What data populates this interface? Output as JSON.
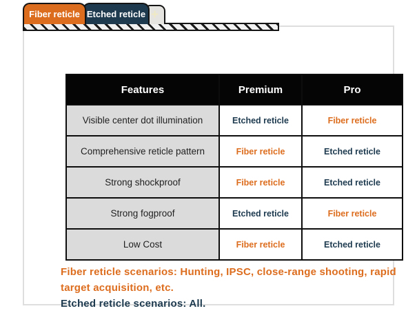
{
  "tab_bar": {
    "tabs": [
      {
        "label": "Fiber reticle",
        "active": true
      },
      {
        "label": "Etched reticle",
        "active": false
      }
    ],
    "new_tab_label": "+"
  },
  "table": {
    "headers": [
      "Features",
      "Premium",
      "Pro"
    ],
    "rows": [
      {
        "feature": "Visible center dot illumination",
        "premium": "Etched reticle",
        "pro": "Fiber reticle"
      },
      {
        "feature": "Comprehensive reticle pattern",
        "premium": "Fiber reticle",
        "pro": "Etched reticle"
      },
      {
        "feature": "Strong shockproof",
        "premium": "Fiber reticle",
        "pro": "Etched reticle"
      },
      {
        "feature": "Strong fogproof",
        "premium": "Etched reticle",
        "pro": "Fiber reticle"
      },
      {
        "feature": "Low Cost",
        "premium": "Fiber reticle",
        "pro": "Etched reticle"
      }
    ]
  },
  "notes": {
    "fiber": "Fiber reticle scenarios: Hunting, IPSC, close-range shooting, rapid target acquisition, etc.",
    "etched": "Etched reticle scenarios: All."
  },
  "colors": {
    "orange": "#dd6d1e",
    "navy": "#1d3a4f",
    "header_bg": "#050505",
    "feature_cell_bg": "#dbdbdb",
    "new_tab_bg": "#e5e4e0",
    "new_tab_glyph": "#efe9c5",
    "panel_border": "#dedede"
  }
}
